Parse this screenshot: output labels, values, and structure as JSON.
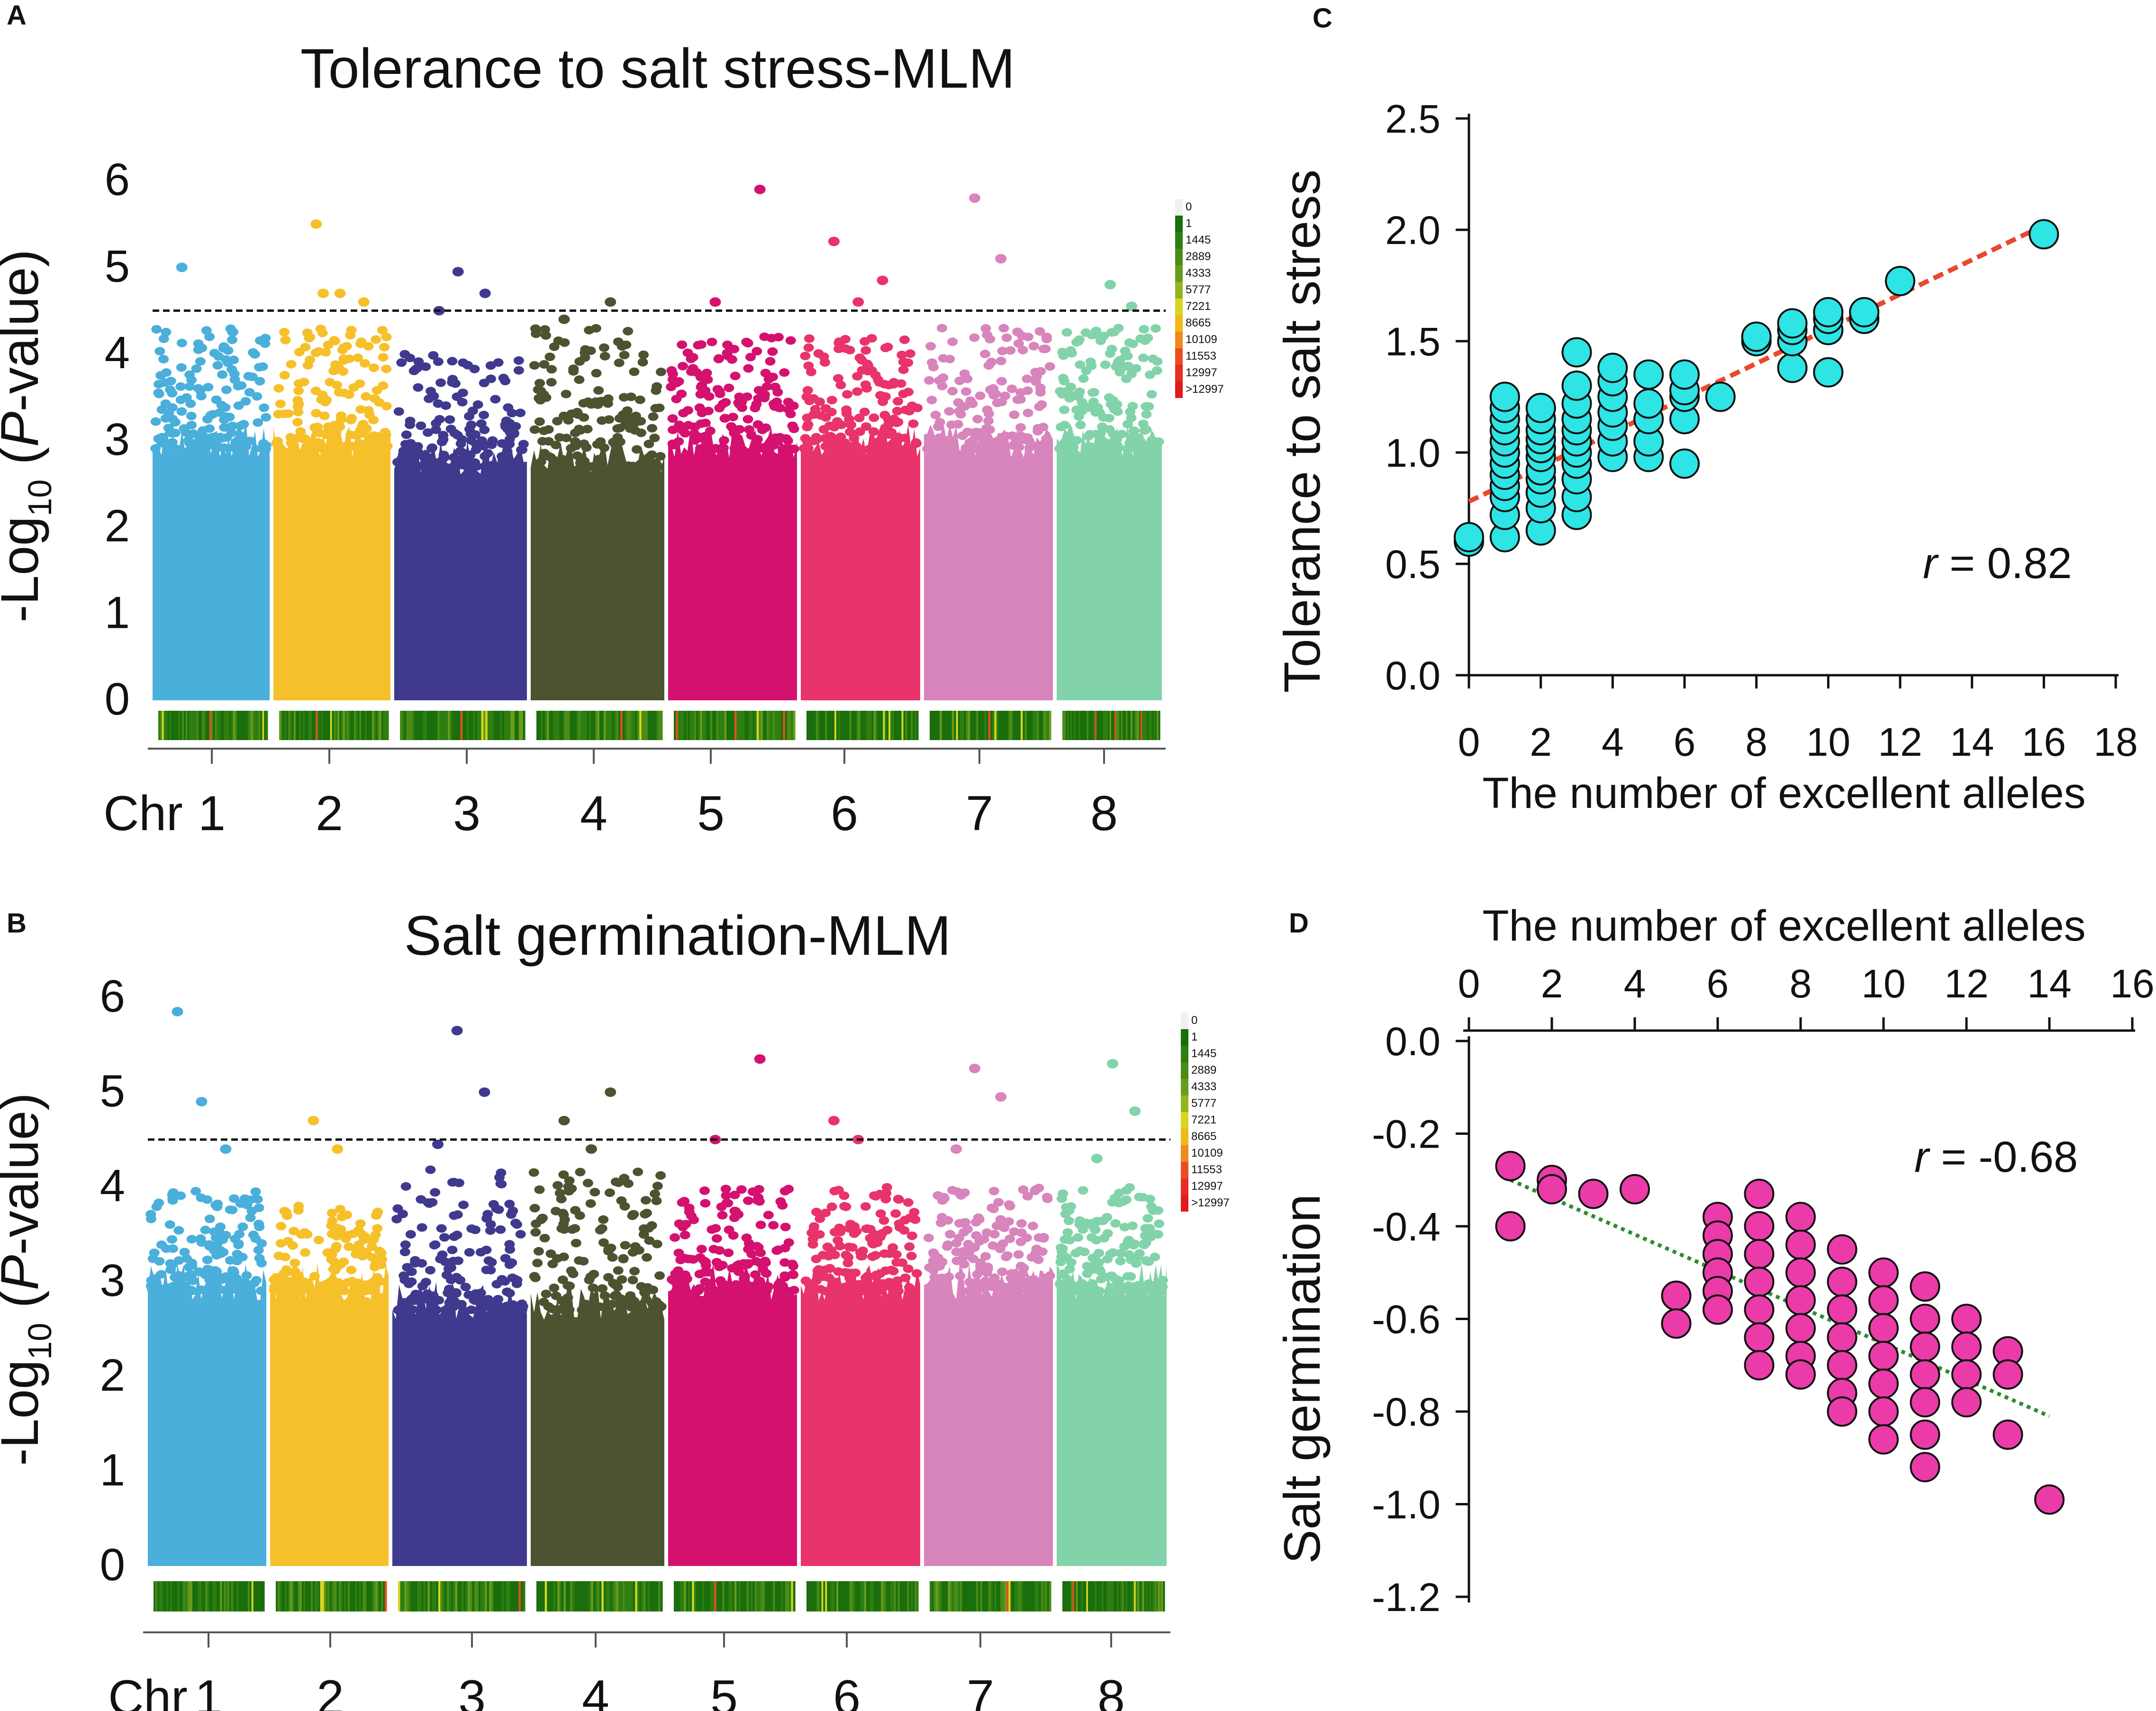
{
  "colors": {
    "chr": [
      "#4aafda",
      "#f6c02a",
      "#3f3a8e",
      "#4b5330",
      "#d4116f",
      "#e8336b",
      "#d884bd",
      "#82d3aa"
    ],
    "density": [
      "#ffffff",
      "#1a6e0b",
      "#2f7e12",
      "#4a8c17",
      "#6a9c1c",
      "#93b421",
      "#d8d61f",
      "#f0b81a",
      "#ee8a1f",
      "#e94e22",
      "#e52d22",
      "#e21a1c"
    ],
    "cyan": "#2ee4e4",
    "magenta": "#ea3ba9",
    "fit_red": "#e8482d",
    "fit_green": "#2e8b2e"
  },
  "chart_data": [
    {
      "panel": "A",
      "type": "scatter",
      "subtype": "manhattan",
      "title": "Tolerance to salt stress-MLM",
      "ylabel_parts": [
        "-Log",
        "10",
        " (",
        "P",
        "-value)"
      ],
      "xlabel_prefix": "Chr",
      "chromosomes": [
        "1",
        "2",
        "3",
        "4",
        "5",
        "6",
        "7",
        "8"
      ],
      "ylim": [
        0,
        6.2
      ],
      "yticks": [
        "0",
        "1",
        "2",
        "3",
        "4",
        "5",
        "6"
      ],
      "threshold": 4.5,
      "legend_title": "0",
      "legend_labels": [
        "1",
        "1445",
        "2889",
        "4333",
        "5777",
        "7221",
        "8665",
        "10109",
        "11553",
        "12997",
        ">12997"
      ],
      "peaks": [
        {
          "chr": 1,
          "max": 4.3,
          "top": [
            5.0
          ]
        },
        {
          "chr": 2,
          "max": 4.3,
          "top": [
            5.5,
            4.7,
            4.6,
            4.7
          ]
        },
        {
          "chr": 3,
          "max": 4.0,
          "top": [
            4.95,
            4.7,
            4.5
          ]
        },
        {
          "chr": 4,
          "max": 4.3,
          "top": [
            4.6,
            4.4
          ]
        },
        {
          "chr": 5,
          "max": 4.2,
          "top": [
            5.9,
            4.6
          ]
        },
        {
          "chr": 6,
          "max": 4.2,
          "top": [
            5.3,
            4.6,
            4.85
          ]
        },
        {
          "chr": 7,
          "max": 4.3,
          "top": [
            5.8,
            5.1
          ]
        },
        {
          "chr": 8,
          "max": 4.3,
          "top": [
            4.8,
            4.55
          ]
        }
      ]
    },
    {
      "panel": "B",
      "type": "scatter",
      "subtype": "manhattan",
      "title": "Salt germination-MLM",
      "ylabel_parts": [
        "-Log",
        "10",
        " (",
        "P",
        "-value)"
      ],
      "xlabel_prefix": "Chr",
      "chromosomes": [
        "1",
        "2",
        "3",
        "4",
        "5",
        "6",
        "7",
        "8"
      ],
      "ylim": [
        0,
        6.2
      ],
      "yticks": [
        "0",
        "1",
        "2",
        "3",
        "4",
        "5",
        "6"
      ],
      "threshold": 4.5,
      "legend_title": "0",
      "legend_labels": [
        "1",
        "1445",
        "2889",
        "4333",
        "5777",
        "7221",
        "8665",
        "10109",
        "11553",
        "12997",
        ">12997"
      ],
      "peaks": [
        {
          "chr": 1,
          "max": 4.0,
          "top": [
            5.85,
            4.9,
            4.4
          ]
        },
        {
          "chr": 2,
          "max": 3.8,
          "top": [
            4.7,
            4.4
          ]
        },
        {
          "chr": 3,
          "max": 4.2,
          "top": [
            5.65,
            5.0,
            4.45
          ]
        },
        {
          "chr": 4,
          "max": 4.2,
          "top": [
            5.0,
            4.7,
            4.4
          ]
        },
        {
          "chr": 5,
          "max": 4.0,
          "top": [
            5.35,
            4.5
          ]
        },
        {
          "chr": 6,
          "max": 4.0,
          "top": [
            4.7,
            4.5
          ]
        },
        {
          "chr": 7,
          "max": 4.0,
          "top": [
            5.25,
            4.95,
            4.4
          ]
        },
        {
          "chr": 8,
          "max": 4.0,
          "top": [
            5.3,
            4.8,
            4.3
          ]
        }
      ]
    },
    {
      "panel": "C",
      "type": "scatter",
      "xlabel": "The number of excellent alleles",
      "ylabel": "Tolerance to salt stress",
      "xlim": [
        0,
        18
      ],
      "ylim": [
        0,
        2.5
      ],
      "xticks": [
        "0",
        "2",
        "4",
        "6",
        "8",
        "10",
        "12",
        "14",
        "16",
        "18"
      ],
      "yticks": [
        "0.0",
        "0.5",
        "1.0",
        "1.5",
        "2.0",
        "2.5"
      ],
      "r_label": "r",
      "r_value": " = 0.82",
      "fit": {
        "x0": 0,
        "y0": 0.78,
        "x1": 16,
        "y1": 2.02
      },
      "points": [
        [
          0,
          0.6
        ],
        [
          0,
          0.62
        ],
        [
          1,
          0.62
        ],
        [
          1,
          0.72
        ],
        [
          1,
          0.8
        ],
        [
          1,
          0.85
        ],
        [
          1,
          0.9
        ],
        [
          1,
          0.95
        ],
        [
          1,
          1.0
        ],
        [
          1,
          1.05
        ],
        [
          1,
          1.1
        ],
        [
          1,
          1.15
        ],
        [
          1,
          1.2
        ],
        [
          1,
          1.25
        ],
        [
          2,
          0.65
        ],
        [
          2,
          0.75
        ],
        [
          2,
          0.82
        ],
        [
          2,
          0.88
        ],
        [
          2,
          0.92
        ],
        [
          2,
          0.98
        ],
        [
          2,
          1.02
        ],
        [
          2,
          1.06
        ],
        [
          2,
          1.1
        ],
        [
          2,
          1.15
        ],
        [
          2,
          1.2
        ],
        [
          3,
          0.72
        ],
        [
          3,
          0.8
        ],
        [
          3,
          0.88
        ],
        [
          3,
          0.95
        ],
        [
          3,
          1.0
        ],
        [
          3,
          1.05
        ],
        [
          3,
          1.1
        ],
        [
          3,
          1.15
        ],
        [
          3,
          1.22
        ],
        [
          3,
          1.3
        ],
        [
          3,
          1.45
        ],
        [
          4,
          0.98
        ],
        [
          4,
          1.05
        ],
        [
          4,
          1.12
        ],
        [
          4,
          1.18
        ],
        [
          4,
          1.25
        ],
        [
          4,
          1.32
        ],
        [
          4,
          1.38
        ],
        [
          5,
          0.98
        ],
        [
          5,
          1.05
        ],
        [
          5,
          1.15
        ],
        [
          5,
          1.22
        ],
        [
          5,
          1.35
        ],
        [
          6,
          0.95
        ],
        [
          6,
          1.15
        ],
        [
          6,
          1.25
        ],
        [
          6,
          1.28
        ],
        [
          6,
          1.35
        ],
        [
          7,
          1.25
        ],
        [
          8,
          1.5
        ],
        [
          8,
          1.52
        ],
        [
          9,
          1.38
        ],
        [
          9,
          1.5
        ],
        [
          9,
          1.55
        ],
        [
          9,
          1.58
        ],
        [
          10,
          1.36
        ],
        [
          10,
          1.55
        ],
        [
          10,
          1.6
        ],
        [
          10,
          1.63
        ],
        [
          11,
          1.6
        ],
        [
          11,
          1.63
        ],
        [
          12,
          1.77
        ],
        [
          16,
          1.98
        ]
      ]
    },
    {
      "panel": "D",
      "type": "scatter",
      "xlabel": "The number of excellent alleles",
      "ylabel": "Salt germination",
      "xlim": [
        0,
        16
      ],
      "ylim": [
        -1.2,
        0
      ],
      "xticks": [
        "0",
        "2",
        "4",
        "6",
        "8",
        "10",
        "12",
        "14",
        "16"
      ],
      "yticks": [
        "0.0",
        "-0.2",
        "-0.4",
        "-0.6",
        "-0.8",
        "-1.0",
        "-1.2"
      ],
      "r_label": "r",
      "r_value": " = -0.68",
      "fit": {
        "x0": 1,
        "y0": -0.3,
        "x1": 14,
        "y1": -0.81
      },
      "points": [
        [
          1,
          -0.27
        ],
        [
          1,
          -0.4
        ],
        [
          2,
          -0.3
        ],
        [
          2,
          -0.32
        ],
        [
          3,
          -0.33
        ],
        [
          4,
          -0.32
        ],
        [
          5,
          -0.55
        ],
        [
          5,
          -0.61
        ],
        [
          6,
          -0.38
        ],
        [
          6,
          -0.42
        ],
        [
          6,
          -0.46
        ],
        [
          6,
          -0.5
        ],
        [
          6,
          -0.54
        ],
        [
          6,
          -0.58
        ],
        [
          7,
          -0.33
        ],
        [
          7,
          -0.4
        ],
        [
          7,
          -0.46
        ],
        [
          7,
          -0.52
        ],
        [
          7,
          -0.58
        ],
        [
          7,
          -0.64
        ],
        [
          7,
          -0.7
        ],
        [
          8,
          -0.38
        ],
        [
          8,
          -0.44
        ],
        [
          8,
          -0.5
        ],
        [
          8,
          -0.56
        ],
        [
          8,
          -0.62
        ],
        [
          8,
          -0.68
        ],
        [
          8,
          -0.72
        ],
        [
          9,
          -0.45
        ],
        [
          9,
          -0.52
        ],
        [
          9,
          -0.58
        ],
        [
          9,
          -0.64
        ],
        [
          9,
          -0.7
        ],
        [
          9,
          -0.76
        ],
        [
          9,
          -0.8
        ],
        [
          10,
          -0.5
        ],
        [
          10,
          -0.56
        ],
        [
          10,
          -0.62
        ],
        [
          10,
          -0.68
        ],
        [
          10,
          -0.74
        ],
        [
          10,
          -0.8
        ],
        [
          10,
          -0.86
        ],
        [
          11,
          -0.53
        ],
        [
          11,
          -0.6
        ],
        [
          11,
          -0.66
        ],
        [
          11,
          -0.72
        ],
        [
          11,
          -0.78
        ],
        [
          11,
          -0.85
        ],
        [
          11,
          -0.92
        ],
        [
          12,
          -0.6
        ],
        [
          12,
          -0.66
        ],
        [
          12,
          -0.72
        ],
        [
          12,
          -0.78
        ],
        [
          13,
          -0.67
        ],
        [
          13,
          -0.72
        ],
        [
          13,
          -0.85
        ],
        [
          14,
          -0.99
        ]
      ]
    }
  ]
}
